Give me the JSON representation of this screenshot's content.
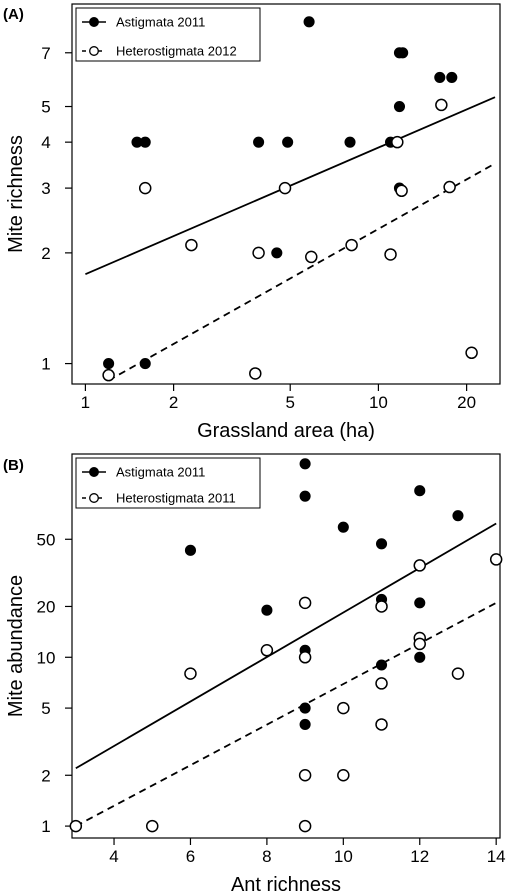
{
  "chart_data": [
    {
      "type": "scatter",
      "panel_label": "(A)",
      "xlabel": "Grassland area (ha)",
      "ylabel": "Mite richness",
      "x_scale": "log",
      "y_scale": "log",
      "xlim": [
        0.9,
        26
      ],
      "ylim": [
        0.88,
        9.5
      ],
      "x_ticks": [
        1,
        2,
        5,
        10,
        20
      ],
      "y_ticks": [
        1,
        2,
        3,
        4,
        5,
        7
      ],
      "legend_position": "top-left",
      "series": [
        {
          "name": "Astigmata 2011",
          "marker": "filled-circle",
          "line": "solid",
          "points": [
            [
              1.2,
              1
            ],
            [
              1.6,
              1
            ],
            [
              1.5,
              4
            ],
            [
              1.6,
              4
            ],
            [
              3.9,
              4
            ],
            [
              4.5,
              2
            ],
            [
              4.8,
              3
            ],
            [
              4.9,
              4
            ],
            [
              5.8,
              8.5
            ],
            [
              8,
              4
            ],
            [
              11,
              4
            ],
            [
              11.8,
              3
            ],
            [
              11.8,
              5
            ],
            [
              11.8,
              7
            ],
            [
              12.1,
              7
            ],
            [
              16.2,
              6
            ],
            [
              17.8,
              6
            ]
          ],
          "trend": [
            [
              1,
              1.75
            ],
            [
              25,
              5.3
            ]
          ]
        },
        {
          "name": "Heterostigmata 2012",
          "marker": "open-circle",
          "line": "dashed",
          "points": [
            [
              1.2,
              0.93
            ],
            [
              1.6,
              3
            ],
            [
              2.3,
              2.1
            ],
            [
              3.8,
              0.94
            ],
            [
              3.9,
              2
            ],
            [
              4.8,
              3
            ],
            [
              5.9,
              1.95
            ],
            [
              8.1,
              2.1
            ],
            [
              11,
              1.98
            ],
            [
              11.6,
              4
            ],
            [
              12,
              2.95
            ],
            [
              16.4,
              5.05
            ],
            [
              17.5,
              3.02
            ],
            [
              20.8,
              1.07
            ]
          ],
          "trend": [
            [
              1.2,
              0.9
            ],
            [
              25,
              3.5
            ]
          ]
        }
      ]
    },
    {
      "type": "scatter",
      "panel_label": "(B)",
      "xlabel": "Ant richness",
      "ylabel": "Mite abundance",
      "x_scale": "linear",
      "y_scale": "log",
      "xlim": [
        2.9,
        14.1
      ],
      "ylim": [
        0.85,
        160
      ],
      "x_ticks": [
        4,
        6,
        8,
        10,
        12,
        14
      ],
      "y_ticks": [
        1,
        2,
        5,
        10,
        20,
        50
      ],
      "legend_position": "top-left",
      "series": [
        {
          "name": "Astigmata 2011",
          "marker": "filled-circle",
          "line": "solid",
          "points": [
            [
              3,
              1
            ],
            [
              5,
              1
            ],
            [
              6,
              43
            ],
            [
              8,
              19
            ],
            [
              9,
              140
            ],
            [
              9,
              90
            ],
            [
              9,
              11
            ],
            [
              9,
              5
            ],
            [
              9,
              4
            ],
            [
              10,
              59
            ],
            [
              10,
              5
            ],
            [
              11,
              47
            ],
            [
              11,
              22
            ],
            [
              11,
              9
            ],
            [
              12,
              97
            ],
            [
              12,
              21
            ],
            [
              12,
              10
            ],
            [
              13,
              69
            ],
            [
              14,
              38
            ]
          ],
          "trend": [
            [
              3,
              2.2
            ],
            [
              14,
              62
            ]
          ]
        },
        {
          "name": "Heterostigmata 2011",
          "marker": "open-circle",
          "line": "dashed",
          "points": [
            [
              3,
              1
            ],
            [
              5,
              1
            ],
            [
              6,
              8
            ],
            [
              8,
              11
            ],
            [
              9,
              21
            ],
            [
              9,
              10
            ],
            [
              9,
              2
            ],
            [
              9,
              1
            ],
            [
              10,
              5
            ],
            [
              10,
              2
            ],
            [
              11,
              20
            ],
            [
              11,
              7
            ],
            [
              11,
              4
            ],
            [
              12,
              35
            ],
            [
              12,
              13
            ],
            [
              12,
              12
            ],
            [
              13,
              8
            ],
            [
              14,
              38
            ]
          ],
          "trend": [
            [
              3,
              1
            ],
            [
              14,
              21
            ]
          ]
        }
      ]
    }
  ]
}
